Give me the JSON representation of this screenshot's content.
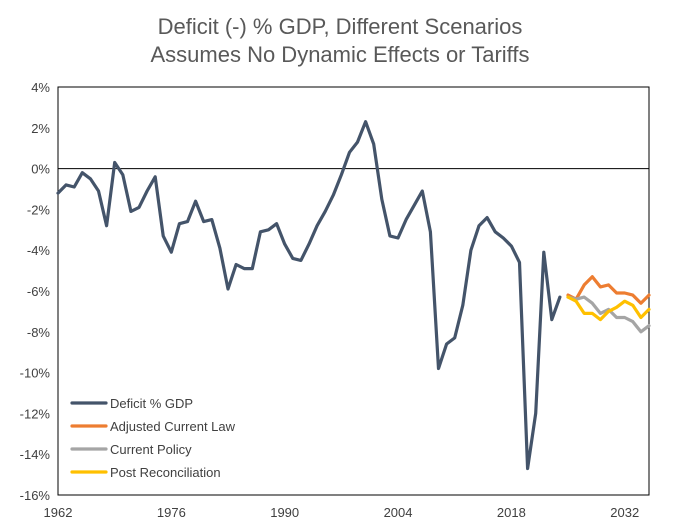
{
  "chart_data": {
    "type": "line",
    "title": "Deficit (-) % GDP, Different Scenarios",
    "subtitle": "Assumes No Dynamic Effects or Tariffs",
    "xlabel": "",
    "ylabel": "",
    "xlim": [
      1962,
      2035
    ],
    "ylim": [
      -16,
      4
    ],
    "x_ticks": [
      "1962",
      "1976",
      "1990",
      "2004",
      "2018",
      "2032"
    ],
    "y_ticks": [
      "4%",
      "2%",
      "0%",
      "-2%",
      "-4%",
      "-6%",
      "-8%",
      "-10%",
      "-12%",
      "-14%",
      "-16%"
    ],
    "grid": false,
    "legend_position": "bottom-left",
    "series": [
      {
        "name": "Deficit % GDP",
        "color": "#44546A",
        "x": [
          1962,
          1963,
          1964,
          1965,
          1966,
          1967,
          1968,
          1969,
          1970,
          1971,
          1972,
          1973,
          1974,
          1975,
          1976,
          1977,
          1978,
          1979,
          1980,
          1981,
          1982,
          1983,
          1984,
          1985,
          1986,
          1987,
          1988,
          1989,
          1990,
          1991,
          1992,
          1993,
          1994,
          1995,
          1996,
          1997,
          1998,
          1999,
          2000,
          2001,
          2002,
          2003,
          2004,
          2005,
          2006,
          2007,
          2008,
          2009,
          2010,
          2011,
          2012,
          2013,
          2014,
          2015,
          2016,
          2017,
          2018,
          2019,
          2020,
          2021,
          2022,
          2023,
          2024
        ],
        "values": [
          -1.2,
          -0.8,
          -0.9,
          -0.2,
          -0.5,
          -1.1,
          -2.8,
          0.3,
          -0.3,
          -2.1,
          -1.9,
          -1.1,
          -0.4,
          -3.3,
          -4.1,
          -2.7,
          -2.6,
          -1.6,
          -2.6,
          -2.5,
          -3.9,
          -5.9,
          -4.7,
          -4.9,
          -4.9,
          -3.1,
          -3.0,
          -2.7,
          -3.7,
          -4.4,
          -4.5,
          -3.7,
          -2.8,
          -2.1,
          -1.3,
          -0.3,
          0.8,
          1.3,
          2.3,
          1.2,
          -1.5,
          -3.3,
          -3.4,
          -2.5,
          -1.8,
          -1.1,
          -3.1,
          -9.8,
          -8.6,
          -8.3,
          -6.7,
          -4.0,
          -2.8,
          -2.4,
          -3.1,
          -3.4,
          -3.8,
          -4.6,
          -14.7,
          -12.0,
          -4.1,
          -7.4,
          -6.3
        ]
      },
      {
        "name": "Adjusted Current Law",
        "color": "#ED7D31",
        "x": [
          2025,
          2026,
          2027,
          2028,
          2029,
          2030,
          2031,
          2032,
          2033,
          2034,
          2035
        ],
        "values": [
          -6.2,
          -6.4,
          -5.7,
          -5.3,
          -5.8,
          -5.7,
          -6.1,
          -6.1,
          -6.2,
          -6.6,
          -6.2
        ]
      },
      {
        "name": "Current Policy",
        "color": "#A5A5A5",
        "x": [
          2025,
          2026,
          2027,
          2028,
          2029,
          2030,
          2031,
          2032,
          2033,
          2034,
          2035
        ],
        "values": [
          -6.3,
          -6.4,
          -6.3,
          -6.6,
          -7.1,
          -6.9,
          -7.3,
          -7.3,
          -7.5,
          -8.0,
          -7.7
        ]
      },
      {
        "name": "Post Reconciliation",
        "color": "#FFC000",
        "x": [
          2025,
          2026,
          2027,
          2028,
          2029,
          2030,
          2031,
          2032,
          2033,
          2034,
          2035
        ],
        "values": [
          -6.3,
          -6.5,
          -7.1,
          -7.1,
          -7.4,
          -7.0,
          -6.8,
          -6.5,
          -6.7,
          -7.3,
          -6.9
        ]
      }
    ]
  }
}
